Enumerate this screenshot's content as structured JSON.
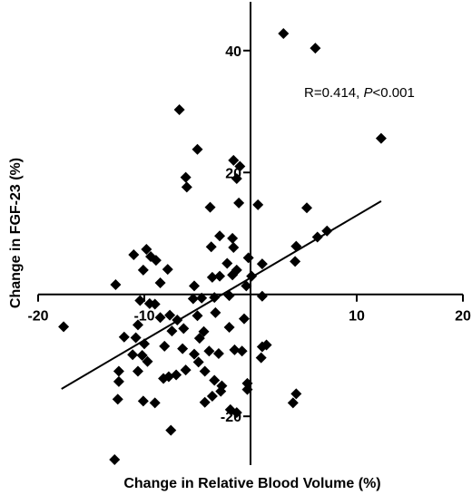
{
  "chart_data": {
    "type": "scatter",
    "xlabel": "Change in Relative Blood Volume  (%)",
    "ylabel": "Change in FGF-23 (%)",
    "xlim": [
      -20,
      20
    ],
    "ylim": [
      -28,
      48
    ],
    "xticks": [
      "-20",
      "-10",
      "10",
      "20"
    ],
    "yticks": [
      "40",
      "20",
      "-20"
    ],
    "annotation": {
      "prefix": "R=0.414, ",
      "italic": "P",
      "suffix": "<0.001"
    },
    "regression_line": {
      "x": [
        -17.8,
        12.3
      ],
      "y": [
        -15.5,
        15.3
      ]
    },
    "grid": false,
    "marker": "diamond",
    "color": "#000000",
    "points": [
      [
        3.1,
        42.8
      ],
      [
        6.1,
        40.4
      ],
      [
        12.3,
        25.6
      ],
      [
        -6.7,
        30.3
      ],
      [
        -5.0,
        23.8
      ],
      [
        -6.1,
        19.2
      ],
      [
        -6.0,
        17.6
      ],
      [
        -1.6,
        22.0
      ],
      [
        -1.0,
        21.0
      ],
      [
        -1.3,
        19.0
      ],
      [
        -1.1,
        15.0
      ],
      [
        -3.8,
        14.3
      ],
      [
        0.7,
        14.7
      ],
      [
        5.3,
        14.2
      ],
      [
        7.2,
        10.4
      ],
      [
        6.3,
        9.4
      ],
      [
        4.3,
        7.9
      ],
      [
        4.2,
        5.4
      ],
      [
        -2.9,
        9.6
      ],
      [
        -1.7,
        9.2
      ],
      [
        -1.6,
        7.7
      ],
      [
        -3.7,
        7.8
      ],
      [
        -9.8,
        7.4
      ],
      [
        -11.0,
        6.5
      ],
      [
        -9.4,
        6.2
      ],
      [
        -8.9,
        5.6
      ],
      [
        -10.1,
        4.0
      ],
      [
        -7.8,
        4.1
      ],
      [
        -2.2,
        5.1
      ],
      [
        -0.2,
        6.0
      ],
      [
        1.1,
        5.0
      ],
      [
        -12.7,
        1.6
      ],
      [
        -8.5,
        1.9
      ],
      [
        -3.6,
        2.8
      ],
      [
        -2.9,
        3.0
      ],
      [
        -1.7,
        3.2
      ],
      [
        -1.3,
        4.0
      ],
      [
        -0.4,
        1.4
      ],
      [
        0.1,
        3.0
      ],
      [
        -5.3,
        1.4
      ],
      [
        -5.4,
        -0.7
      ],
      [
        -4.6,
        -0.6
      ],
      [
        -5.0,
        -3.5
      ],
      [
        -3.3,
        -3.0
      ],
      [
        -3.4,
        -0.5
      ],
      [
        -2.0,
        -0.2
      ],
      [
        1.1,
        -0.3
      ],
      [
        -10.4,
        -1.0
      ],
      [
        -9.5,
        -1.5
      ],
      [
        -8.5,
        -3.8
      ],
      [
        -6.9,
        -4.2
      ],
      [
        -7.6,
        -3.4
      ],
      [
        -9.0,
        -1.6
      ],
      [
        -4.4,
        -6.1
      ],
      [
        -2.0,
        -5.4
      ],
      [
        -0.6,
        -4.0
      ],
      [
        -4.8,
        -7.2
      ],
      [
        -6.3,
        -5.6
      ],
      [
        -7.4,
        -6.0
      ],
      [
        -10.6,
        -5.0
      ],
      [
        -11.9,
        -7.0
      ],
      [
        -10.8,
        -7.1
      ],
      [
        -10.0,
        -8.1
      ],
      [
        -11.1,
        -9.9
      ],
      [
        -10.2,
        -10.0
      ],
      [
        -9.7,
        -11.0
      ],
      [
        -8.1,
        -8.5
      ],
      [
        -6.4,
        -8.9
      ],
      [
        -5.3,
        -9.8
      ],
      [
        -3.9,
        -9.3
      ],
      [
        -3.0,
        -9.7
      ],
      [
        -1.5,
        -9.1
      ],
      [
        -0.8,
        -9.3
      ],
      [
        1.1,
        -8.6
      ],
      [
        1.5,
        -8.3
      ],
      [
        1.0,
        -10.4
      ],
      [
        -6.1,
        -12.4
      ],
      [
        -7.0,
        -13.2
      ],
      [
        -4.9,
        -11.1
      ],
      [
        -4.3,
        -12.6
      ],
      [
        -3.4,
        -14.1
      ],
      [
        -2.7,
        -15.0
      ],
      [
        -2.8,
        -15.9
      ],
      [
        -3.6,
        -16.7
      ],
      [
        -10.6,
        -12.6
      ],
      [
        -12.4,
        -12.6
      ],
      [
        -8.2,
        -13.8
      ],
      [
        -7.7,
        -13.5
      ],
      [
        -4.3,
        -17.7
      ],
      [
        -1.3,
        -19.4
      ],
      [
        -1.9,
        -18.9
      ],
      [
        -0.3,
        -14.6
      ],
      [
        -0.3,
        -15.6
      ],
      [
        4.3,
        -16.3
      ],
      [
        4.0,
        -17.8
      ],
      [
        -9.0,
        -17.8
      ],
      [
        -10.1,
        -17.5
      ],
      [
        -12.5,
        -17.2
      ],
      [
        -12.4,
        -14.3
      ],
      [
        -7.5,
        -22.3
      ],
      [
        -12.8,
        -27.1
      ],
      [
        -17.6,
        -5.3
      ]
    ]
  }
}
